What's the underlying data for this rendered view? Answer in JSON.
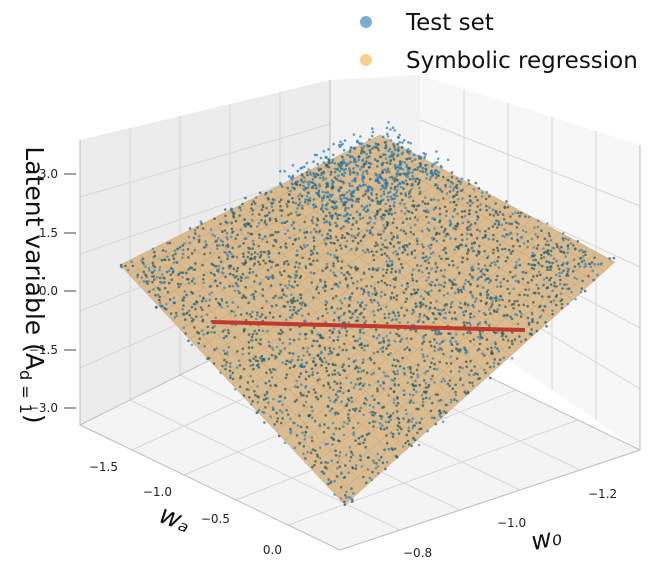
{
  "chart_data": {
    "type": "scatter",
    "projection": "3d",
    "legend": {
      "placement": "top-right",
      "entries": [
        {
          "label": "Test set",
          "color": "#1f77b4"
        },
        {
          "label": "Symbolic regression",
          "color": "#f5b041"
        }
      ]
    },
    "axes": {
      "x": {
        "label": "w₀",
        "ticks": [
          "−1.2",
          "−1.0",
          "−0.8"
        ],
        "range": [
          -1.35,
          -0.75
        ]
      },
      "y": {
        "label": "wₐ",
        "ticks": [
          "−1.5",
          "−1.0",
          "−0.5",
          "0.0"
        ],
        "range": [
          -1.7,
          0.1
        ]
      },
      "z": {
        "label": "Latent variable (A",
        "label_sub": "d = 1",
        "label_close": ")",
        "ticks": [
          "3.0",
          "1.5",
          "0.0",
          "−1.5",
          "−3.0"
        ],
        "range": [
          -3.5,
          3.5
        ]
      }
    },
    "grid": true,
    "series": [
      {
        "name": "Test set",
        "kind": "points",
        "color": "#1f77b4"
      },
      {
        "name": "Symbolic regression",
        "kind": "surface",
        "color": "#f5b041"
      }
    ],
    "highlight_line": {
      "color": "#c0392b"
    }
  }
}
